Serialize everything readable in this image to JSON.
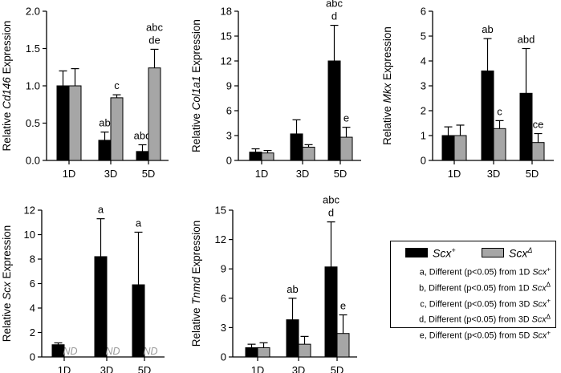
{
  "colors": {
    "scx_plus": "#000000",
    "scx_delta": "#a6a6a6",
    "nd_text": "#9a9a9a"
  },
  "charts": [
    {
      "type": "bar",
      "categories": [
        "1D",
        "3D",
        "5D"
      ],
      "ylabel_prefix": "Relative ",
      "ylabel_gene": "Cd146",
      "ylabel_suffix": " Expression",
      "ylim": [
        0,
        2.0
      ],
      "yticks": [
        "0.0",
        "0.5",
        "1.0",
        "1.5",
        "2.0"
      ],
      "series": [
        {
          "values": [
            1.0,
            0.27,
            0.12
          ],
          "errors": [
            0.2,
            0.11,
            0.09
          ],
          "annotations": [
            [],
            [
              "ab"
            ],
            [
              "abd"
            ]
          ]
        },
        {
          "values": [
            1.0,
            0.84,
            1.24
          ],
          "errors": [
            0.23,
            0.04,
            0.25
          ],
          "annotations": [
            [],
            [
              "c"
            ],
            [
              "abc",
              "de"
            ]
          ]
        }
      ]
    },
    {
      "type": "bar",
      "categories": [
        "1D",
        "3D",
        "5D"
      ],
      "ylabel_prefix": "Relative ",
      "ylabel_gene": "Col1a1",
      "ylabel_suffix": " Expression",
      "ylim": [
        0,
        18
      ],
      "yticks": [
        "0",
        "3",
        "6",
        "9",
        "12",
        "15",
        "18"
      ],
      "series": [
        {
          "values": [
            1.0,
            3.2,
            12.0
          ],
          "errors": [
            0.4,
            1.7,
            4.3
          ],
          "annotations": [
            [],
            [],
            [
              "abc",
              "d"
            ]
          ]
        },
        {
          "values": [
            0.9,
            1.6,
            2.8
          ],
          "errors": [
            0.3,
            0.3,
            1.2
          ],
          "annotations": [
            [],
            [],
            [
              "e"
            ]
          ]
        }
      ]
    },
    {
      "type": "bar",
      "categories": [
        "1D",
        "3D",
        "5D"
      ],
      "ylabel_prefix": "Relative ",
      "ylabel_gene": "Mkx",
      "ylabel_suffix": " Expression",
      "ylim": [
        0,
        6
      ],
      "yticks": [
        "0",
        "1",
        "2",
        "3",
        "4",
        "5",
        "6"
      ],
      "series": [
        {
          "values": [
            1.0,
            3.6,
            2.7
          ],
          "errors": [
            0.35,
            1.3,
            1.8
          ],
          "annotations": [
            [],
            [
              "ab"
            ],
            [
              "abd"
            ]
          ]
        },
        {
          "values": [
            1.0,
            1.28,
            0.72
          ],
          "errors": [
            0.42,
            0.32,
            0.36
          ],
          "annotations": [
            [],
            [
              "c"
            ],
            [
              "ce"
            ]
          ]
        }
      ]
    },
    {
      "type": "bar",
      "categories": [
        "1D",
        "3D",
        "5D"
      ],
      "ylabel_prefix": "Relative ",
      "ylabel_gene": "Scx",
      "ylabel_suffix": " Expression",
      "ylim": [
        0,
        12
      ],
      "yticks": [
        "0",
        "2",
        "4",
        "6",
        "8",
        "10",
        "12"
      ],
      "series": [
        {
          "values": [
            1.0,
            8.2,
            5.9
          ],
          "errors": [
            0.15,
            3.1,
            4.3
          ],
          "annotations": [
            [],
            [
              "a"
            ],
            [
              "a"
            ]
          ]
        },
        {
          "values": [
            null,
            null,
            null
          ],
          "errors": [
            null,
            null,
            null
          ],
          "annotations": [
            [],
            [],
            []
          ],
          "missing_text": [
            "ND",
            "ND",
            "ND"
          ]
        }
      ]
    },
    {
      "type": "bar",
      "categories": [
        "1D",
        "3D",
        "5D"
      ],
      "ylabel_prefix": "Relative ",
      "ylabel_gene": "Tnmd",
      "ylabel_suffix": " Expression",
      "ylim": [
        0,
        15
      ],
      "yticks": [
        "0",
        "3",
        "6",
        "9",
        "12",
        "15"
      ],
      "series": [
        {
          "values": [
            0.95,
            3.8,
            9.2
          ],
          "errors": [
            0.35,
            2.2,
            4.6
          ],
          "annotations": [
            [],
            [
              "ab"
            ],
            [
              "abc",
              "d"
            ]
          ]
        },
        {
          "values": [
            0.95,
            1.3,
            2.4
          ],
          "errors": [
            0.5,
            0.8,
            1.9
          ],
          "annotations": [
            [],
            [],
            [
              "e"
            ]
          ]
        }
      ]
    }
  ],
  "legend": {
    "series1_name": "Scx",
    "series1_sup": "+",
    "series2_name": "Scx",
    "series2_sup": "Δ",
    "notes": [
      {
        "text": "a, Different (p<0.05) from 1D ",
        "gene": "Scx",
        "sup": "+"
      },
      {
        "text": "b, Different (p<0.05) from 1D ",
        "gene": "Scx",
        "sup": "Δ"
      },
      {
        "text": "c, Different (p<0.05) from 3D ",
        "gene": "Scx",
        "sup": "+"
      },
      {
        "text": "d, Different (p<0.05) from 3D ",
        "gene": "Scx",
        "sup": "Δ"
      },
      {
        "text": "e, Different (p<0.05) from 5D ",
        "gene": "Scx",
        "sup": "+"
      }
    ]
  }
}
